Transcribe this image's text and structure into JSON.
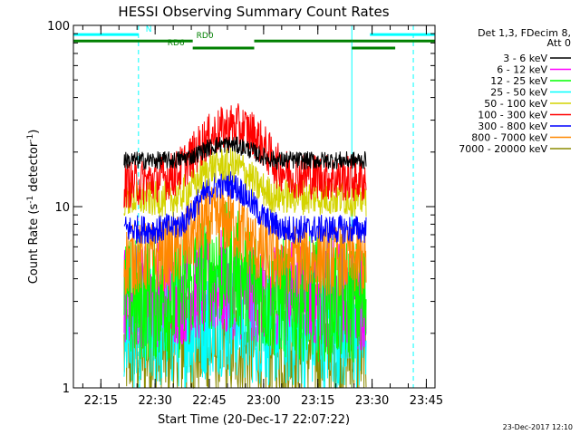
{
  "chart_data": {
    "type": "line",
    "title": "HESSI Observing Summary Count Rates",
    "xlabel": "Start Time (20-Dec-17 22:07:22)",
    "ylabel": "Count Rate (s-1 detector-1)",
    "ylabel_parts": {
      "prefix": "Count Rate (s",
      "sup1": "-1",
      "mid": " detector",
      "sup2": "-1",
      "suffix": ")"
    },
    "yscale": "log",
    "ylim": [
      1,
      100
    ],
    "xlim_minutes": [
      0,
      100
    ],
    "x_ticks": [
      {
        "label": "22:15",
        "min": 7.6
      },
      {
        "label": "22:30",
        "min": 22.6
      },
      {
        "label": "22:45",
        "min": 37.6
      },
      {
        "label": "23:00",
        "min": 52.6
      },
      {
        "label": "23:15",
        "min": 67.6
      },
      {
        "label": "23:30",
        "min": 82.6
      },
      {
        "label": "23:45",
        "min": 97.6
      }
    ],
    "y_ticks": [
      {
        "label": "1",
        "value": 1
      },
      {
        "label": "10",
        "value": 10
      },
      {
        "label": "100",
        "value": 100
      }
    ],
    "legend": {
      "position": "right",
      "header": [
        "Det 1,3, FDecim 8,",
        "Att 0"
      ],
      "entries": [
        {
          "label": "3 - 6 keV",
          "color": "#000000"
        },
        {
          "label": "6 - 12 keV",
          "color": "#ff00ff"
        },
        {
          "label": "12 - 25 keV",
          "color": "#00ff00"
        },
        {
          "label": "25 - 50 keV",
          "color": "#00ffff"
        },
        {
          "label": "50 - 100 keV",
          "color": "#d4d400"
        },
        {
          "label": "100 - 300 keV",
          "color": "#ff0000"
        },
        {
          "label": "300 - 800 keV",
          "color": "#0000ff"
        },
        {
          "label": "800 - 7000 keV",
          "color": "#ff8800"
        },
        {
          "label": "7000 - 20000 keV",
          "color": "#8b8b00"
        }
      ]
    },
    "data_window_minutes": [
      14,
      81
    ],
    "series": [
      {
        "name": "3 - 6 keV",
        "color": "#000000",
        "points": [
          [
            14,
            18
          ],
          [
            28,
            18
          ],
          [
            33,
            19
          ],
          [
            37,
            21
          ],
          [
            40,
            22
          ],
          [
            44,
            22
          ],
          [
            48,
            21
          ],
          [
            52,
            19
          ],
          [
            56,
            18
          ],
          [
            81,
            18
          ]
        ],
        "noise": 0.05
      },
      {
        "name": "100 - 300 keV",
        "color": "#ff0000",
        "points": [
          [
            14,
            13
          ],
          [
            22,
            14
          ],
          [
            28,
            15
          ],
          [
            33,
            19
          ],
          [
            36,
            23
          ],
          [
            40,
            26
          ],
          [
            44,
            28
          ],
          [
            47,
            27
          ],
          [
            50,
            25
          ],
          [
            53,
            21
          ],
          [
            56,
            17
          ],
          [
            60,
            15
          ],
          [
            81,
            14
          ]
        ],
        "noise": 0.13
      },
      {
        "name": "50 - 100 keV",
        "color": "#d4d400",
        "points": [
          [
            14,
            11
          ],
          [
            28,
            11
          ],
          [
            33,
            13
          ],
          [
            37,
            16
          ],
          [
            40,
            17
          ],
          [
            44,
            17
          ],
          [
            47,
            16
          ],
          [
            51,
            13
          ],
          [
            55,
            11.5
          ],
          [
            81,
            11
          ]
        ],
        "noise": 0.1
      },
      {
        "name": "300 - 800 keV",
        "color": "#0000ff",
        "points": [
          [
            14,
            7.5
          ],
          [
            24,
            7.5
          ],
          [
            30,
            8
          ],
          [
            35,
            11
          ],
          [
            39,
            13
          ],
          [
            43,
            13.5
          ],
          [
            47,
            12
          ],
          [
            50,
            10
          ],
          [
            53,
            8.5
          ],
          [
            58,
            7.5
          ],
          [
            81,
            7.5
          ]
        ],
        "noise": 0.08
      },
      {
        "name": "800 - 7000 keV",
        "color": "#ff8800",
        "points": [
          [
            14,
            5
          ],
          [
            28,
            5.5
          ],
          [
            33,
            7
          ],
          [
            37,
            8
          ],
          [
            42,
            8.5
          ],
          [
            46,
            7.5
          ],
          [
            50,
            6
          ],
          [
            55,
            5.2
          ],
          [
            81,
            5
          ]
        ],
        "noise": 0.2
      },
      {
        "name": "12 - 25 keV",
        "color": "#00ff00",
        "points": [
          [
            14,
            3
          ],
          [
            30,
            3.2
          ],
          [
            36,
            4.5
          ],
          [
            42,
            4.8
          ],
          [
            48,
            4
          ],
          [
            54,
            3.2
          ],
          [
            81,
            3
          ]
        ],
        "noise": 0.35
      },
      {
        "name": "6 - 12 keV",
        "color": "#ff00ff",
        "points": [
          [
            14,
            3.2
          ],
          [
            30,
            3.4
          ],
          [
            40,
            3.8
          ],
          [
            50,
            3.5
          ],
          [
            81,
            3.2
          ]
        ],
        "noise": 0.3
      },
      {
        "name": "25 - 50 keV",
        "color": "#00ffff",
        "points": [
          [
            14,
            2
          ],
          [
            30,
            2.2
          ],
          [
            40,
            2.6
          ],
          [
            50,
            2.3
          ],
          [
            81,
            2
          ]
        ],
        "noise": 0.35
      },
      {
        "name": "7000 - 20000 keV",
        "color": "#8b8b00",
        "points": [
          [
            14,
            1.6
          ],
          [
            40,
            1.7
          ],
          [
            81,
            1.6
          ]
        ],
        "noise": 0.3
      }
    ],
    "attenuator_bars": [
      {
        "label": "N",
        "color": "#00ffff",
        "y_value": 89,
        "segments": [
          [
            0,
            18
          ],
          [
            82,
            100
          ]
        ],
        "label_at_min": 20
      },
      {
        "label": "RD0",
        "color": "#008000",
        "y_value": 82,
        "segments": [
          [
            0,
            33
          ],
          [
            50,
            77
          ],
          [
            77,
            100
          ]
        ],
        "label_at_min": 34
      },
      {
        "label": "RD6",
        "color": "#008000",
        "y_value": 75,
        "segments": [
          [
            33,
            50
          ],
          [
            77,
            89
          ]
        ],
        "label_at_min": 26
      }
    ],
    "vertical_markers": [
      {
        "min": 18,
        "color": "#00ffff",
        "style": "dashed"
      },
      {
        "min": 77,
        "color": "#00ffff",
        "style": "solid"
      },
      {
        "min": 94,
        "color": "#00ffff",
        "style": "dashed"
      }
    ]
  },
  "footer": {
    "timestamp": "23-Dec-2017 12:10"
  }
}
